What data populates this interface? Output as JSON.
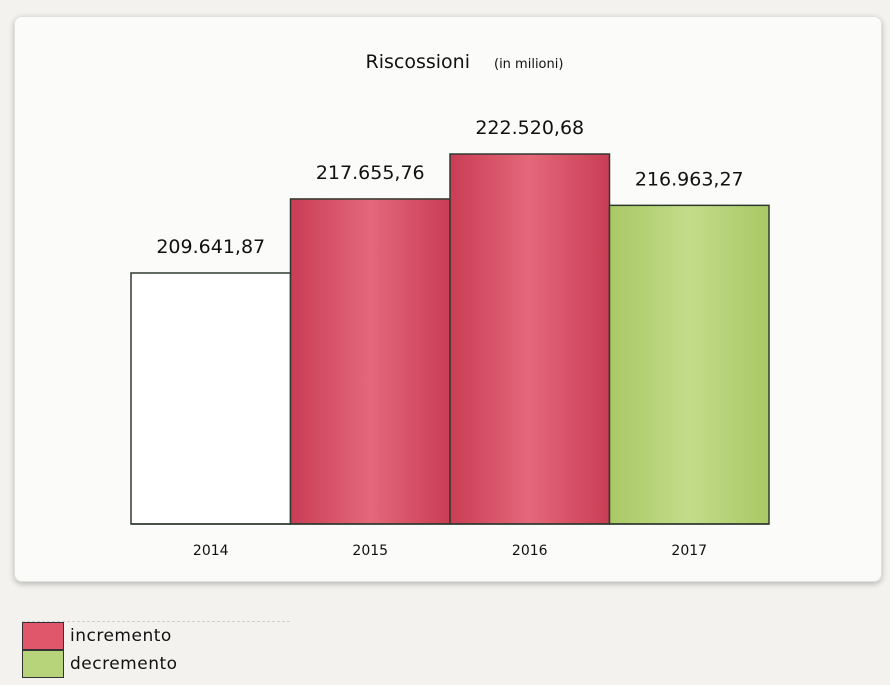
{
  "chart_data": {
    "type": "bar",
    "title": "Riscossioni",
    "subtitle": "(in milioni)",
    "categories": [
      "2014",
      "2015",
      "2016",
      "2017"
    ],
    "values": [
      209641.87,
      217655.76,
      222520.68,
      216963.27
    ],
    "value_labels": [
      "209.641,87",
      "217.655,76",
      "222.520,68",
      "216.963,27"
    ],
    "bar_status": [
      "base",
      "incremento",
      "incremento",
      "decremento"
    ],
    "grid": false,
    "legend_position": "bottom-left"
  },
  "legend": {
    "items": [
      {
        "label": "incremento",
        "color": "#e0566a"
      },
      {
        "label": "decremento",
        "color": "#b8d47a"
      }
    ]
  },
  "colors": {
    "base": "#ffffff",
    "incremento": "#e0566a",
    "decremento": "#b8d47a",
    "outline": "#2f3a2f"
  }
}
